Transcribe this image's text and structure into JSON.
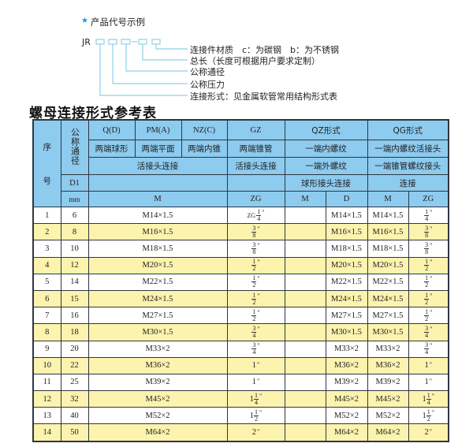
{
  "diagram": {
    "title": "产品代号示例",
    "prefix": "JR",
    "dash": "-",
    "labels": [
      "连接件材质　c：为碳钢　b：为不锈钢",
      "总长（长度可根据用户要求定制）",
      "公称通径",
      "公称压力",
      "连接形式：见金属软管常用结构形式表"
    ],
    "line_color": "#8fd0e8",
    "star_color": "#1a9ad6"
  },
  "section_title": "螺母连接形式参考表",
  "colors": {
    "header": "#8dcbef",
    "alt_row": "#fcf3ae",
    "border": "#2f3640"
  },
  "header": {
    "seq": "序号",
    "seq_a": "序",
    "seq_b": "号",
    "dn": "公称通径",
    "qd": "Q(D)",
    "pm": "PM(A)",
    "nz": "NZ(C)",
    "gz": "GZ",
    "qz": "QZ形式",
    "qg": "QG形式",
    "qd_desc": "两端球形",
    "pm_desc": "两端平面",
    "nz_desc": "两端内锥",
    "gz_desc": "两端锥管",
    "qz_desc1": "一端内螺纹",
    "qg_desc1": "一端内螺纹活接头",
    "union": "活接头连接",
    "gz_union": "活接头连接",
    "qz_desc2": "一端外螺纹",
    "qg_desc2": "一端锥管螺纹接头",
    "d1": "D1",
    "qz_desc3": "球形接头连接",
    "qg_desc3": "连接",
    "mm": "mm",
    "m": "M",
    "zg": "ZG",
    "qz_m": "M",
    "qz_d": "D",
    "qg_m": "M",
    "qg_zg": "ZG"
  },
  "rows": [
    {
      "no": "1",
      "d1": "6",
      "m": "M14×1.5",
      "zg": {
        "pre": "ZG",
        "w": "",
        "n": "1",
        "d": "4"
      },
      "qz_m": "",
      "qz_d": "M14×1.5",
      "qg_m": "M14×1.5",
      "qg_zg": {
        "pre": "",
        "w": "",
        "n": "1",
        "d": "4"
      }
    },
    {
      "no": "2",
      "d1": "8",
      "m": "M16×1.5",
      "zg": {
        "pre": "",
        "w": "",
        "n": "3",
        "d": "8"
      },
      "qz_m": "",
      "qz_d": "M16×1.5",
      "qg_m": "M16×1.5",
      "qg_zg": {
        "pre": "",
        "w": "",
        "n": "3",
        "d": "8"
      }
    },
    {
      "no": "3",
      "d1": "10",
      "m": "M18×1.5",
      "zg": {
        "pre": "",
        "w": "",
        "n": "3",
        "d": "8"
      },
      "qz_m": "",
      "qz_d": "M18×1.5",
      "qg_m": "M18×1.5",
      "qg_zg": {
        "pre": "",
        "w": "",
        "n": "3",
        "d": "8"
      }
    },
    {
      "no": "4",
      "d1": "12",
      "m": "M20×1.5",
      "zg": {
        "pre": "",
        "w": "",
        "n": "1",
        "d": "2"
      },
      "qz_m": "",
      "qz_d": "M20×1.5",
      "qg_m": "M20×1.5",
      "qg_zg": {
        "pre": "",
        "w": "",
        "n": "1",
        "d": "2"
      }
    },
    {
      "no": "5",
      "d1": "14",
      "m": "M22×1.5",
      "zg": {
        "pre": "",
        "w": "",
        "n": "1",
        "d": "2"
      },
      "qz_m": "",
      "qz_d": "M22×1.5",
      "qg_m": "M22×1.5",
      "qg_zg": {
        "pre": "",
        "w": "",
        "n": "1",
        "d": "2"
      }
    },
    {
      "no": "6",
      "d1": "15",
      "m": "M24×1.5",
      "zg": {
        "pre": "",
        "w": "",
        "n": "1",
        "d": "2"
      },
      "qz_m": "",
      "qz_d": "M24×1.5",
      "qg_m": "M24×1.5",
      "qg_zg": {
        "pre": "",
        "w": "",
        "n": "1",
        "d": "2"
      }
    },
    {
      "no": "7",
      "d1": "16",
      "m": "M27×1.5",
      "zg": {
        "pre": "",
        "w": "",
        "n": "1",
        "d": "2"
      },
      "qz_m": "",
      "qz_d": "M27×1.5",
      "qg_m": "M27×1.5",
      "qg_zg": {
        "pre": "",
        "w": "",
        "n": "1",
        "d": "2"
      }
    },
    {
      "no": "8",
      "d1": "18",
      "m": "M30×1.5",
      "zg": {
        "pre": "",
        "w": "",
        "n": "3",
        "d": "4"
      },
      "qz_m": "",
      "qz_d": "M30×1.5",
      "qg_m": "M30×1.5",
      "qg_zg": {
        "pre": "",
        "w": "",
        "n": "3",
        "d": "4"
      }
    },
    {
      "no": "9",
      "d1": "20",
      "m": "M33×2",
      "zg": {
        "pre": "",
        "w": "",
        "n": "3",
        "d": "4"
      },
      "qz_m": "",
      "qz_d": "M33×2",
      "qg_m": "M33×2",
      "qg_zg": {
        "pre": "",
        "w": "",
        "n": "3",
        "d": "4"
      }
    },
    {
      "no": "10",
      "d1": "22",
      "m": "M36×2",
      "zg": {
        "pre": "",
        "w": "1",
        "n": "",
        "d": ""
      },
      "qz_m": "",
      "qz_d": "M36×2",
      "qg_m": "M36×2",
      "qg_zg": {
        "pre": "",
        "w": "1",
        "n": "",
        "d": ""
      }
    },
    {
      "no": "11",
      "d1": "25",
      "m": "M39×2",
      "zg": {
        "pre": "",
        "w": "1",
        "n": "",
        "d": ""
      },
      "qz_m": "",
      "qz_d": "M39×2",
      "qg_m": "M39×2",
      "qg_zg": {
        "pre": "",
        "w": "1",
        "n": "",
        "d": ""
      }
    },
    {
      "no": "12",
      "d1": "32",
      "m": "M45×2",
      "zg": {
        "pre": "",
        "w": "1",
        "n": "1",
        "d": "4"
      },
      "qz_m": "",
      "qz_d": "M45×2",
      "qg_m": "M45×2",
      "qg_zg": {
        "pre": "",
        "w": "1",
        "n": "1",
        "d": "4"
      }
    },
    {
      "no": "13",
      "d1": "40",
      "m": "M52×2",
      "zg": {
        "pre": "",
        "w": "1",
        "n": "1",
        "d": "2"
      },
      "qz_m": "",
      "qz_d": "M52×2",
      "qg_m": "M52×2",
      "qg_zg": {
        "pre": "",
        "w": "1",
        "n": "1",
        "d": "2"
      }
    },
    {
      "no": "14",
      "d1": "50",
      "m": "M64×2",
      "zg": {
        "pre": "",
        "w": "2",
        "n": "",
        "d": ""
      },
      "qz_m": "",
      "qz_d": "M64×2",
      "qg_m": "M64×2",
      "qg_zg": {
        "pre": "",
        "w": "2",
        "n": "",
        "d": ""
      }
    }
  ],
  "inch_mark": "\""
}
